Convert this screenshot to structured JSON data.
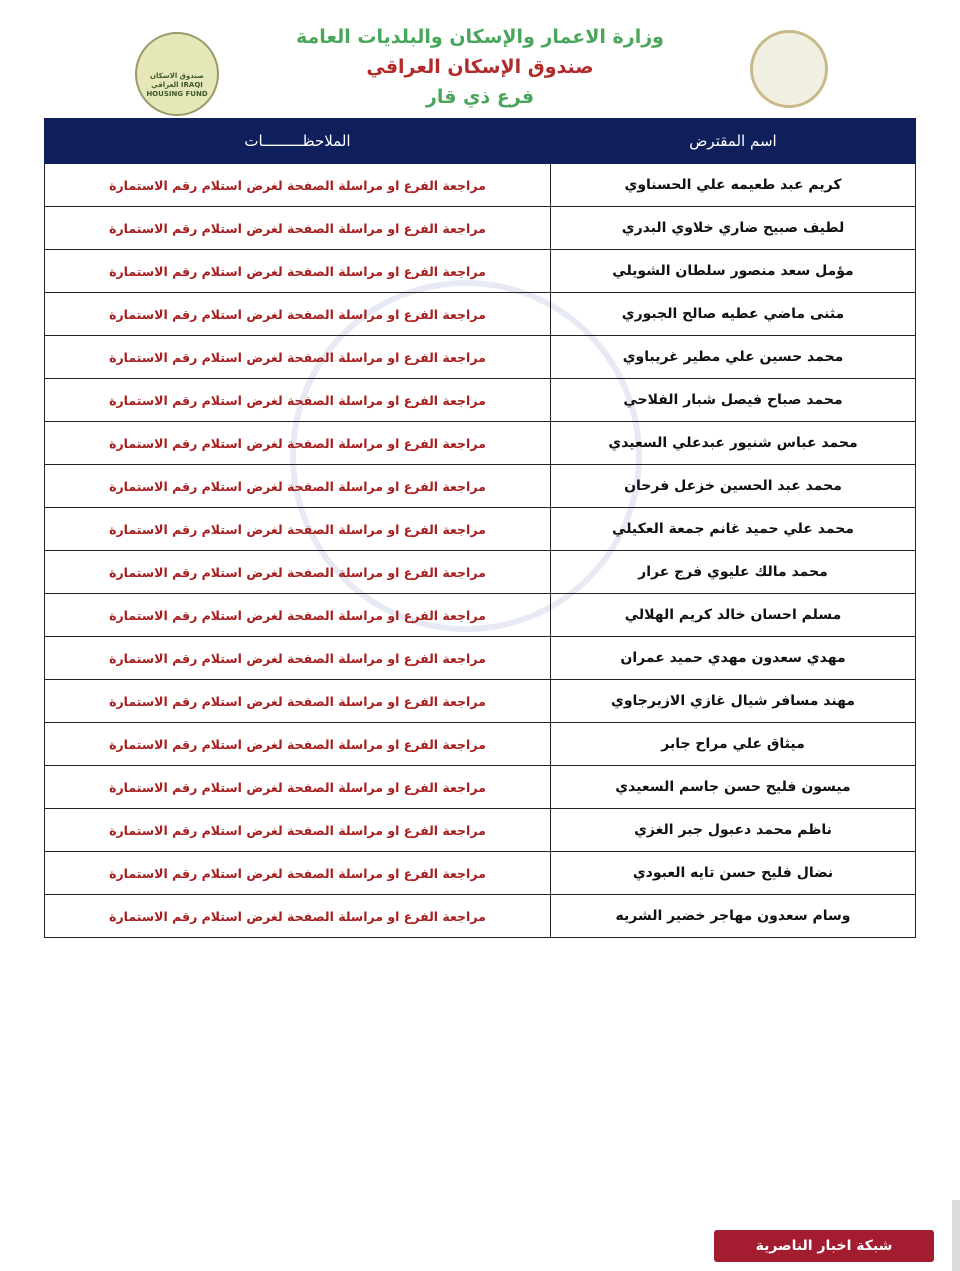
{
  "header": {
    "ministry": "وزارة الاعمار والإسكان والبلديات العامة",
    "fund": "صندوق الإسكان العراقي",
    "branch": "فرع ذي قار",
    "left_logo_text": "صندوق الاسكان العراقي IRAQI HOUSING FUND"
  },
  "table": {
    "columns": [
      "اسم المقترض",
      "الملاحظـــــــــات"
    ],
    "rows": [
      {
        "name": "كريم عبد طعيمه علي الحسناوي",
        "note": "مراجعة الفرع او مراسلة الصفحة لغرض استلام رقم الاستمارة"
      },
      {
        "name": "لطيف صبيح ضاري خلاوي البدري",
        "note": "مراجعة الفرع او مراسلة الصفحة لغرض استلام رقم الاستمارة"
      },
      {
        "name": "مؤمل سعد منصور سلطان الشويلي",
        "note": "مراجعة الفرع او مراسلة الصفحة لغرض استلام رقم الاستمارة"
      },
      {
        "name": "مثنى ماضي عطيه صالح الجبوري",
        "note": "مراجعة الفرع او مراسلة الصفحة لغرض استلام رقم الاستمارة"
      },
      {
        "name": "محمد حسين علي مطير غريباوي",
        "note": "مراجعة الفرع او مراسلة الصفحة لغرض استلام رقم الاستمارة"
      },
      {
        "name": "محمد صباح فيصل شبار الفلاحي",
        "note": "مراجعة الفرع او مراسلة الصفحة لغرض استلام رقم الاستمارة"
      },
      {
        "name": "محمد عباس شنيور عبدعلي السعيدي",
        "note": "مراجعة الفرع او مراسلة الصفحة لغرض استلام رقم الاستمارة"
      },
      {
        "name": "محمد عبد الحسين خزعل فرحان",
        "note": "مراجعة الفرع او مراسلة الصفحة لغرض استلام رقم الاستمارة"
      },
      {
        "name": "محمد علي حميد غانم جمعة العكيلي",
        "note": "مراجعة الفرع او مراسلة الصفحة لغرض استلام رقم الاستمارة"
      },
      {
        "name": "محمد مالك عليوي فرج عرار",
        "note": "مراجعة الفرع او مراسلة الصفحة لغرض استلام رقم الاستمارة"
      },
      {
        "name": "مسلم احسان خالد كريم الهلالي",
        "note": "مراجعة الفرع او مراسلة الصفحة لغرض استلام رقم الاستمارة"
      },
      {
        "name": "مهدي سعدون مهدي حميد عمران",
        "note": "مراجعة الفرع او مراسلة الصفحة لغرض استلام رقم الاستمارة"
      },
      {
        "name": "مهند مسافر شيال غازي الازيرجاوي",
        "note": "مراجعة الفرع او مراسلة الصفحة لغرض استلام رقم الاستمارة"
      },
      {
        "name": "ميثاق علي مراح جابر",
        "note": "مراجعة الفرع او مراسلة الصفحة لغرض استلام رقم الاستمارة"
      },
      {
        "name": "ميسون فليح حسن جاسم السعيدي",
        "note": "مراجعة الفرع او مراسلة الصفحة لغرض استلام رقم الاستمارة"
      },
      {
        "name": "ناظم محمد دعبول جبر الغزي",
        "note": "مراجعة الفرع او مراسلة الصفحة لغرض استلام رقم الاستمارة"
      },
      {
        "name": "نضال فليح حسن تايه العبودي",
        "note": "مراجعة الفرع او مراسلة الصفحة لغرض استلام رقم الاستمارة"
      },
      {
        "name": "وسام سعدون مهاجر خضير الشريه",
        "note": "مراجعة الفرع او مراسلة الصفحة لغرض استلام رقم الاستمارة"
      }
    ]
  },
  "watermark_text": "صندوق الاسكان العراقي IRAQI HOUSING FUND",
  "footer_logo_text": "شبكة اخبار الناصرية",
  "colors": {
    "header_bg": "#0f1f5c",
    "note_text": "#a81e1e",
    "title_green": "#4aa65a",
    "title_red": "#b22a2a"
  }
}
